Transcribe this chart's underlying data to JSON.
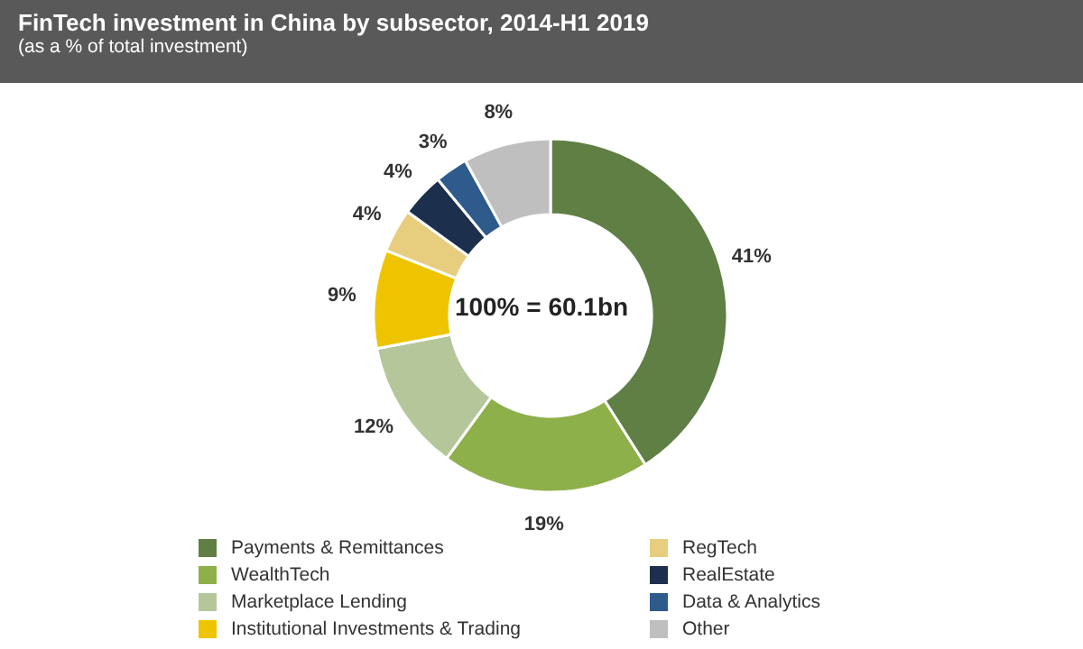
{
  "chart_data": {
    "type": "donut",
    "title": "FinTech investment in China by subsector, 2014-H1 2019",
    "subtitle": "(as a % of total investment)",
    "categories": [
      "Payments & Remittances",
      "WealthTech",
      "Marketplace Lending",
      "Institutional Investments & Trading",
      "RegTech",
      "RealEstate",
      "Data & Analytics",
      "Other"
    ],
    "values": [
      41,
      19,
      12,
      9,
      4,
      4,
      3,
      8
    ],
    "value_labels": [
      "41%",
      "19%",
      "12%",
      "9%",
      "4%",
      "4%",
      "3%",
      "8%"
    ],
    "colors": [
      "#5f7f45",
      "#8db04a",
      "#b5c79a",
      "#eec400",
      "#e7cd7e",
      "#1c2f4c",
      "#2e5a8c",
      "#bfbfbf"
    ],
    "annotations": [
      "100% = 60.1bn"
    ],
    "legend": "bottom"
  }
}
